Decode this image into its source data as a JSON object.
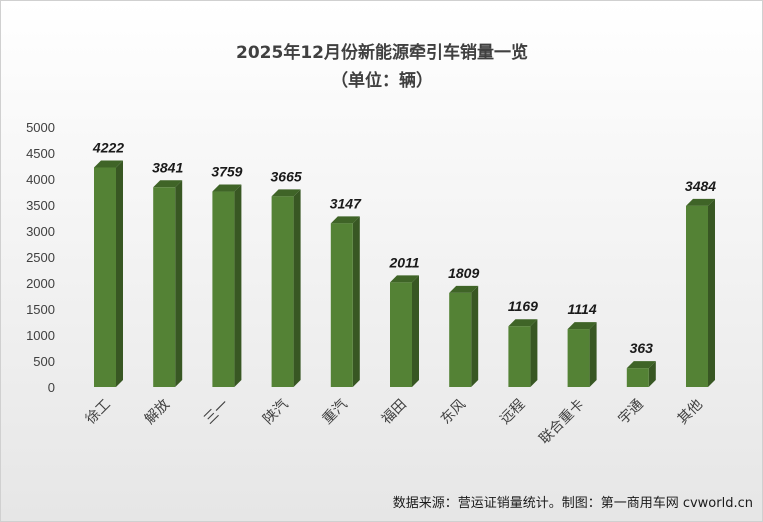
{
  "chart_data": {
    "type": "bar",
    "title": "2025年12月份新能源牵引车销量一览",
    "subtitle": "（单位：辆）",
    "categories": [
      "徐工",
      "解放",
      "三一",
      "陕汽",
      "重汽",
      "福田",
      "东风",
      "远程",
      "联合重卡",
      "宇通",
      "其他"
    ],
    "values": [
      4222,
      3841,
      3759,
      3665,
      3147,
      2011,
      1809,
      1169,
      1114,
      363,
      3484
    ],
    "ylim": [
      0,
      5000
    ],
    "yticks": [
      "0",
      "500",
      "1000",
      "1500",
      "2000",
      "2500",
      "3000",
      "3500",
      "4000",
      "4500",
      "5000"
    ],
    "grid": false,
    "legend": "none",
    "bar_color": "#548235",
    "bar_top_color": "#3f6427",
    "bar_side_color": "#385723",
    "source": "数据来源：营运证销量统计。制图：第一商用车网 cvworld.cn"
  }
}
